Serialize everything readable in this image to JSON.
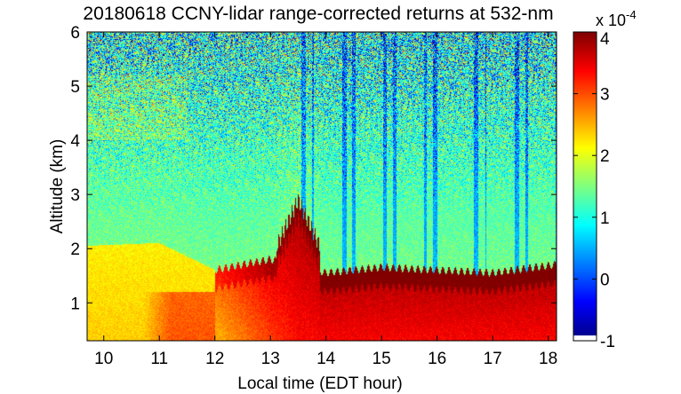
{
  "chart_data": {
    "type": "heatmap",
    "title": "20180618 CCNY-lidar range-corrected returns at 532-nm",
    "xlabel": "Local time (EDT hour)",
    "ylabel": "Altitude (km)",
    "xlim": [
      9.7,
      18.15
    ],
    "ylim": [
      0.3,
      6.0
    ],
    "xticks": [
      10,
      11,
      12,
      13,
      14,
      15,
      16,
      17,
      18
    ],
    "yticks": [
      1,
      2,
      3,
      4,
      5,
      6
    ],
    "colorbar": {
      "scale_label": "x 10",
      "scale_exponent": "-4",
      "range": [
        -1,
        4
      ],
      "ticks": [
        -1,
        0,
        1,
        2,
        3,
        4
      ],
      "colormap": "jet"
    },
    "features": {
      "boundary_layer_top_km": [
        {
          "hour": 9.7,
          "value": 2.05
        },
        {
          "hour": 11.0,
          "value": 2.1
        },
        {
          "hour": 12.0,
          "value": 1.6
        },
        {
          "hour": 13.0,
          "value": 1.8
        },
        {
          "hour": 14.0,
          "value": 1.55
        },
        {
          "hour": 15.0,
          "value": 1.65
        },
        {
          "hour": 16.0,
          "value": 1.6
        },
        {
          "hour": 17.0,
          "value": 1.55
        },
        {
          "hour": 18.15,
          "value": 1.7
        }
      ],
      "convective_plume": {
        "hour": 13.5,
        "top_km": 2.9
      }
    }
  },
  "colors": {
    "axis": "#000000",
    "background": "#ffffff"
  }
}
